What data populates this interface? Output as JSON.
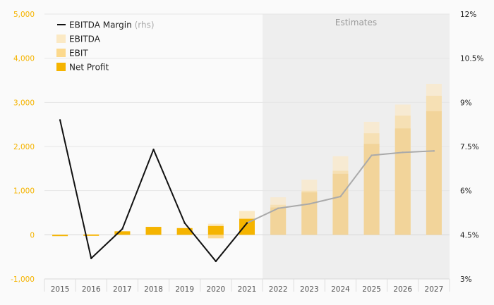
{
  "chart_data": {
    "type": "bar+line",
    "categories": [
      "2015",
      "2016",
      "2017",
      "2018",
      "2019",
      "2020",
      "2021",
      "2022",
      "2023",
      "2024",
      "2025",
      "2026",
      "2027"
    ],
    "estimates_from": "2022",
    "estimates_label": "Estimates",
    "left_axis": {
      "ylim": [
        -1000,
        5000
      ],
      "ticks": [
        "-1,000",
        "0",
        "1,000",
        "2,000",
        "3,000",
        "4,000",
        "5,000"
      ],
      "tick_values": [
        -1000,
        0,
        1000,
        2000,
        3000,
        4000,
        5000
      ]
    },
    "right_axis": {
      "ylim": [
        3,
        12
      ],
      "ticks": [
        "3%",
        "4.5%",
        "6%",
        "7.5%",
        "9%",
        "10.5%",
        "12%"
      ],
      "tick_values": [
        3,
        4.5,
        6,
        7.5,
        9,
        10.5,
        12
      ]
    },
    "series": [
      {
        "name": "EBITDA",
        "type": "bar",
        "color": "#fbe9c4",
        "values": [
          -10,
          20,
          70,
          180,
          160,
          250,
          540,
          850,
          1250,
          1780,
          2560,
          2950,
          3420
        ]
      },
      {
        "name": "EBIT",
        "type": "bar",
        "color": "#fcd98d",
        "values": [
          -20,
          10,
          60,
          170,
          140,
          -80,
          370,
          680,
          1000,
          1450,
          2300,
          2700,
          3150
        ]
      },
      {
        "name": "Net Profit",
        "type": "bar",
        "color": "#f5b400",
        "values": [
          -30,
          -10,
          80,
          180,
          150,
          200,
          360,
          620,
          960,
          1380,
          2060,
          2410,
          2800
        ]
      },
      {
        "name": "EBITDA Margin",
        "suffix": "(rhs)",
        "type": "line",
        "axis": "right",
        "color": "#111111",
        "estimate_color": "#aaaaaa",
        "values": [
          8.4,
          3.7,
          4.7,
          7.4,
          4.9,
          3.6,
          4.9,
          5.4,
          5.55,
          5.8,
          7.2,
          7.3,
          7.35
        ]
      }
    ]
  }
}
